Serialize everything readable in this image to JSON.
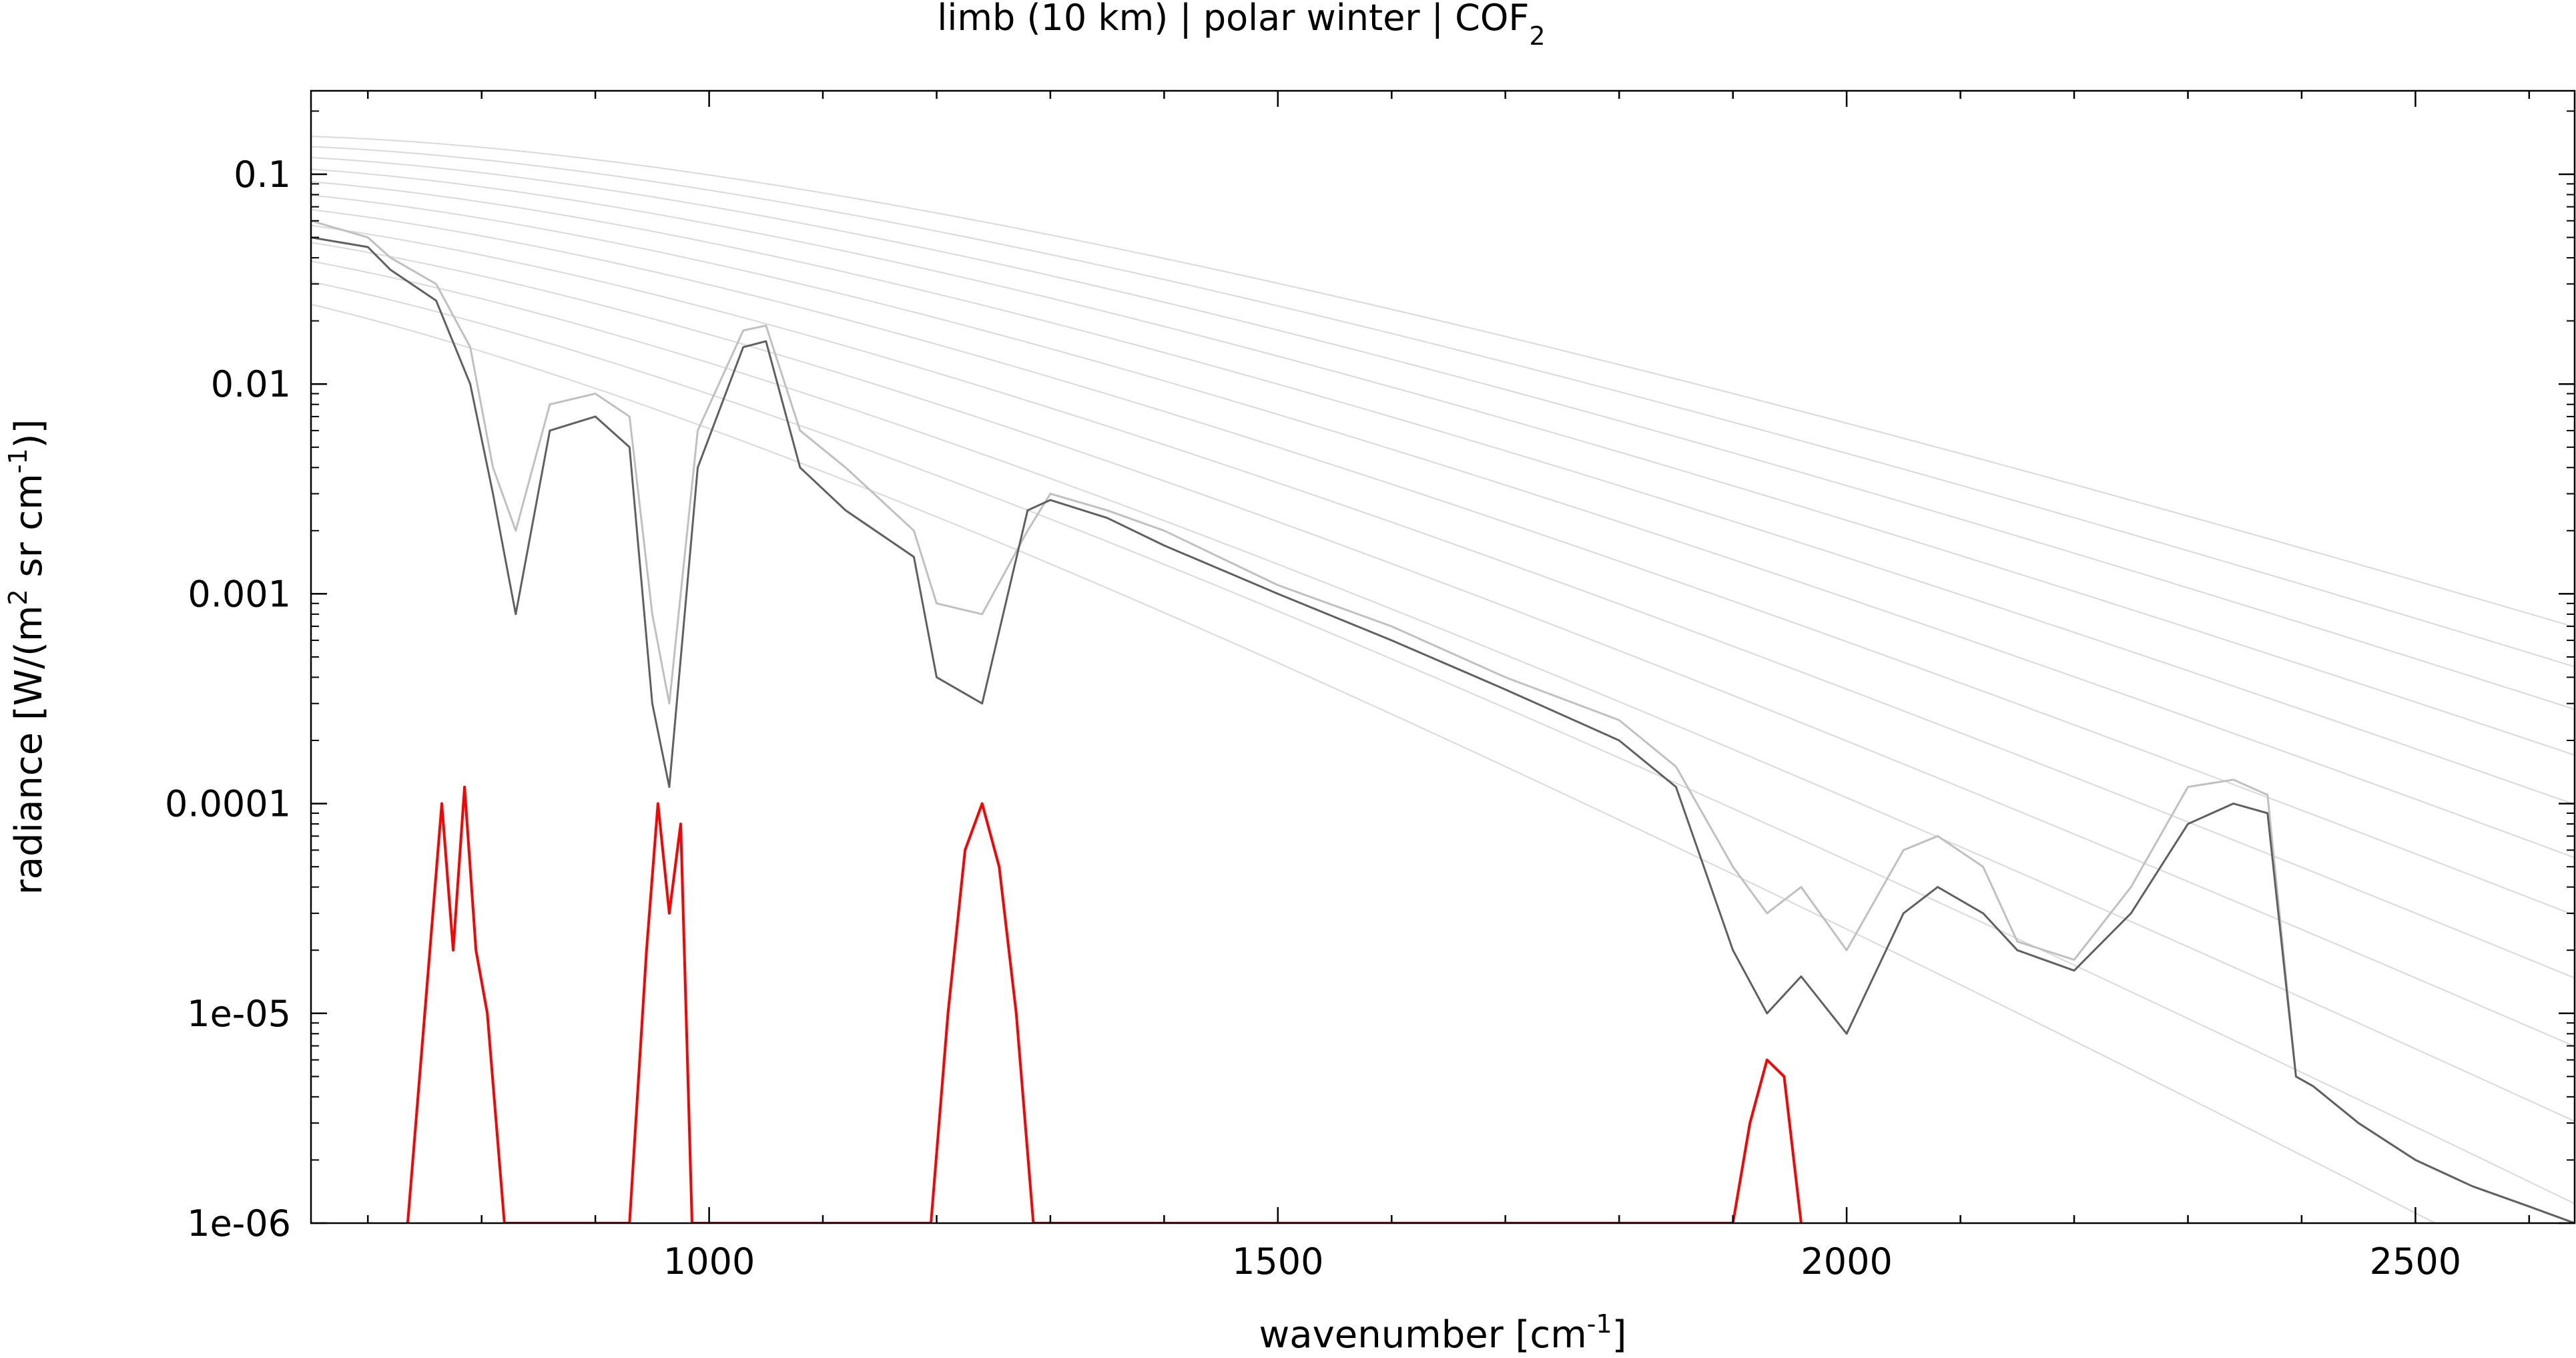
{
  "chart_data": {
    "type": "line",
    "title": "limb (10 km) | polar winter | COF",
    "title_subscript": "2",
    "xlabel": {
      "prefix": "wavenumber [cm",
      "sup": "-1",
      "suffix": "]"
    },
    "ylabel": {
      "prefix": "radiance [W/(m",
      "sup1": "2",
      "middle": " sr cm",
      "sup2": "-1",
      "suffix": ")]"
    },
    "xlim": [
      650,
      2640
    ],
    "ylim": [
      1e-06,
      0.25
    ],
    "yscale": "log",
    "grid": false,
    "x_ticks": [
      1000,
      1500,
      2000,
      2500
    ],
    "x_tick_labels": [
      "1000",
      "1500",
      "2000",
      "2500"
    ],
    "y_ticks": [
      0.1,
      0.01,
      0.001,
      0.0001,
      1e-05,
      1e-06
    ],
    "y_tick_labels": [
      "0.1",
      "0.01",
      "0.001",
      "0.0001",
      "1e-05",
      "1e-06"
    ],
    "planck_reference_temperatures_K": [
      190,
      200,
      210,
      220,
      230,
      240,
      250,
      260,
      270,
      280,
      290,
      300
    ],
    "series": [
      {
        "role": "total radiance (all gases)",
        "color": "#c0c0c0",
        "x": [
          650,
          700,
          720,
          760,
          790,
          810,
          830,
          860,
          900,
          930,
          950,
          965,
          990,
          1030,
          1050,
          1080,
          1120,
          1180,
          1200,
          1240,
          1280,
          1300,
          1350,
          1400,
          1500,
          1600,
          1700,
          1800,
          1850,
          1900,
          1930,
          1960,
          2000,
          2050,
          2080,
          2120,
          2150,
          2200,
          2250,
          2300,
          2340,
          2370,
          2395,
          2410,
          2450,
          2500,
          2550,
          2600,
          2640
        ],
        "y": [
          0.06,
          0.05,
          0.04,
          0.03,
          0.015,
          0.004,
          0.002,
          0.008,
          0.009,
          0.007,
          0.0008,
          0.0003,
          0.006,
          0.018,
          0.019,
          0.006,
          0.004,
          0.002,
          0.0009,
          0.0008,
          0.002,
          0.003,
          0.0025,
          0.002,
          0.0011,
          0.0007,
          0.0004,
          0.00025,
          0.00015,
          5e-05,
          3e-05,
          4e-05,
          2e-05,
          6e-05,
          7e-05,
          5e-05,
          2.2e-05,
          1.8e-05,
          4e-05,
          0.00012,
          0.00013,
          0.00011,
          5e-06,
          4.5e-06,
          3e-06,
          2e-06,
          1.5e-06,
          1.2e-06,
          1e-06
        ]
      },
      {
        "role": "total radiance (band envelope)",
        "color": "#606060",
        "x": [
          650,
          700,
          720,
          760,
          790,
          810,
          830,
          860,
          900,
          930,
          950,
          965,
          990,
          1030,
          1050,
          1080,
          1120,
          1180,
          1200,
          1240,
          1280,
          1300,
          1350,
          1400,
          1500,
          1600,
          1700,
          1800,
          1850,
          1900,
          1930,
          1960,
          2000,
          2050,
          2080,
          2120,
          2150,
          2200,
          2250,
          2300,
          2340,
          2370,
          2395,
          2410,
          2450,
          2500,
          2550,
          2600,
          2640
        ],
        "y": [
          0.05,
          0.045,
          0.035,
          0.025,
          0.01,
          0.003,
          0.0008,
          0.006,
          0.007,
          0.005,
          0.0003,
          0.00012,
          0.004,
          0.015,
          0.016,
          0.004,
          0.0025,
          0.0015,
          0.0004,
          0.0003,
          0.0025,
          0.0028,
          0.0023,
          0.0017,
          0.001,
          0.0006,
          0.00035,
          0.0002,
          0.00012,
          2e-05,
          1e-05,
          1.5e-05,
          8e-06,
          3e-05,
          4e-05,
          3e-05,
          2e-05,
          1.6e-05,
          3e-05,
          8e-05,
          0.0001,
          9e-05,
          5e-06,
          4.5e-06,
          3e-06,
          2e-06,
          1.5e-06,
          1.2e-06,
          1e-06
        ]
      },
      {
        "role": "COF2 contribution",
        "color": "#ff0000",
        "x": [
          735,
          750,
          765,
          775,
          785,
          795,
          805,
          820,
          930,
          945,
          955,
          965,
          975,
          985,
          1195,
          1210,
          1225,
          1240,
          1255,
          1270,
          1285,
          1900,
          1915,
          1930,
          1945,
          1960
        ],
        "y": [
          1e-06,
          1e-05,
          0.0001,
          2e-05,
          0.00012,
          2e-05,
          1e-05,
          1e-06,
          1e-06,
          2e-05,
          0.0001,
          3e-05,
          8e-05,
          1e-06,
          1e-06,
          1e-05,
          6e-05,
          0.0001,
          5e-05,
          1e-05,
          1e-06,
          1e-06,
          3e-06,
          6e-06,
          5e-06,
          1e-06
        ]
      }
    ]
  },
  "colors": {
    "total_radiance_light": "#c0c0c0",
    "total_radiance_dark": "#606060",
    "cof2": "#ff0000",
    "planck_curves": "#d9d9d9",
    "frame": "#000000"
  }
}
